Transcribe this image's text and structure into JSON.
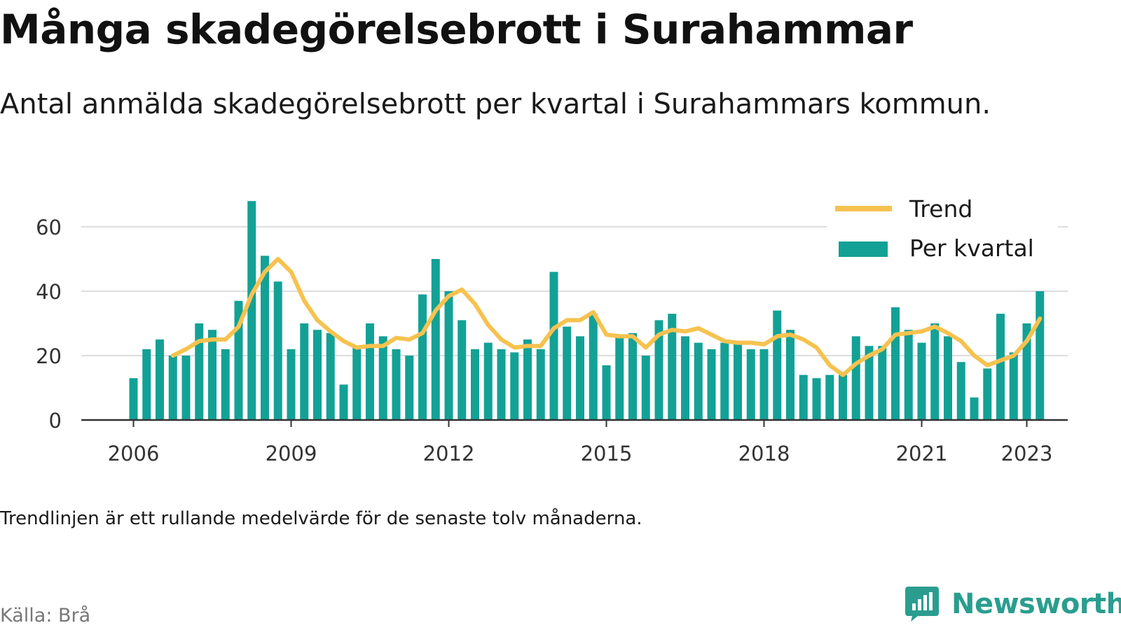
{
  "title": "Många skadegörelsebrott i Surahammar",
  "subtitle": "Antal anmälda skadegörelsebrott per kvartal i Surahammars kommun.",
  "note": "Trendlinjen är ett rullande medelvärde för de senaste tolv månaderna.",
  "source": "Källa: Brå",
  "brand": "Newsworthy",
  "colors": {
    "bars": "#13a196",
    "trend": "#f6c24f",
    "grid": "#dddddd",
    "axis": "#333333"
  },
  "chart_data": {
    "type": "bar",
    "x_unit": "quarter",
    "quarters": [
      "2006Q1",
      "2006Q2",
      "2006Q3",
      "2006Q4",
      "2007Q1",
      "2007Q2",
      "2007Q3",
      "2007Q4",
      "2008Q1",
      "2008Q2",
      "2008Q3",
      "2008Q4",
      "2009Q1",
      "2009Q2",
      "2009Q3",
      "2009Q4",
      "2010Q1",
      "2010Q2",
      "2010Q3",
      "2010Q4",
      "2011Q1",
      "2011Q2",
      "2011Q3",
      "2011Q4",
      "2012Q1",
      "2012Q2",
      "2012Q3",
      "2012Q4",
      "2013Q1",
      "2013Q2",
      "2013Q3",
      "2013Q4",
      "2014Q1",
      "2014Q2",
      "2014Q3",
      "2014Q4",
      "2015Q1",
      "2015Q2",
      "2015Q3",
      "2015Q4",
      "2016Q1",
      "2016Q2",
      "2016Q3",
      "2016Q4",
      "2017Q1",
      "2017Q2",
      "2017Q3",
      "2017Q4",
      "2018Q1",
      "2018Q2",
      "2018Q3",
      "2018Q4",
      "2019Q1",
      "2019Q2",
      "2019Q3",
      "2019Q4",
      "2020Q1",
      "2020Q2",
      "2020Q3",
      "2020Q4",
      "2021Q1",
      "2021Q2",
      "2021Q3",
      "2021Q4",
      "2022Q1",
      "2022Q2",
      "2022Q3",
      "2022Q4",
      "2023Q1",
      "2023Q2"
    ],
    "series": [
      {
        "name": "Per kvartal",
        "type": "bar",
        "values": [
          13,
          22,
          25,
          20,
          20,
          30,
          28,
          22,
          37,
          68,
          51,
          43,
          22,
          30,
          28,
          27,
          11,
          23,
          30,
          26,
          22,
          20,
          39,
          50,
          40,
          31,
          22,
          24,
          22,
          21,
          25,
          22,
          46,
          29,
          26,
          33,
          17,
          26,
          27,
          20,
          31,
          33,
          26,
          24,
          22,
          24,
          24,
          22,
          22,
          34,
          28,
          14,
          13,
          14,
          14,
          26,
          23,
          23,
          35,
          28,
          24,
          30,
          26,
          18,
          7,
          16,
          33,
          21,
          30,
          40
        ]
      },
      {
        "name": "Trend",
        "type": "line",
        "values": [
          null,
          null,
          null,
          20,
          22,
          24.5,
          25,
          25,
          29,
          39,
          46,
          50,
          46,
          37,
          31,
          27.5,
          24.5,
          22.5,
          23,
          23,
          25.5,
          25,
          27,
          34,
          38.5,
          40.5,
          36,
          29.5,
          25,
          22.5,
          23,
          23,
          28.5,
          31,
          31,
          33.5,
          26.5,
          26,
          26,
          22.5,
          26.5,
          28,
          27.5,
          28.5,
          26.5,
          24.5,
          24,
          24,
          23.5,
          26,
          26.5,
          25,
          22.5,
          17,
          14,
          17.5,
          20,
          22,
          26.5,
          27,
          27.5,
          29,
          27,
          24.5,
          20,
          17,
          18.5,
          20,
          24.5,
          31.5
        ]
      }
    ],
    "x_ticks": [
      "2006",
      "2009",
      "2012",
      "2015",
      "2018",
      "2021",
      "2023"
    ],
    "y_ticks": [
      0,
      20,
      40,
      60
    ],
    "ylim": [
      0,
      70
    ],
    "grid": true,
    "legend_position": "top-right"
  }
}
